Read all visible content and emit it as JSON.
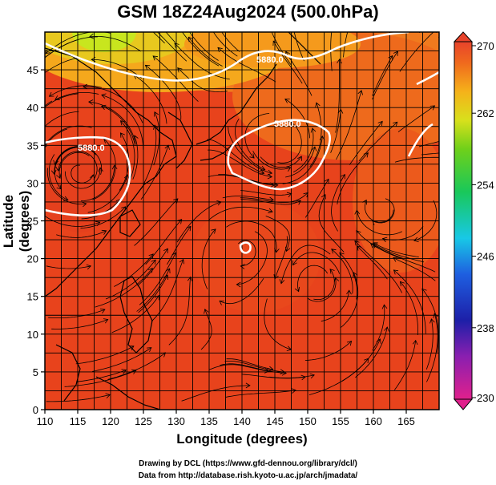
{
  "title": "GSM 18Z24Aug2024 (500.0hPa)",
  "xlabel": "Longitude (degrees)",
  "ylabel": "Latitude  (degrees)",
  "credits": {
    "line1": "Drawing by DCL (https://www.gfd-dennou.org/library/dcl/)",
    "line2": "Data from http://database.rish.kyoto-u.ac.jp/arch/jmadata/"
  },
  "x_ticks": [
    "110",
    "115",
    "120",
    "125",
    "130",
    "135",
    "140",
    "145",
    "150",
    "155",
    "160",
    "165"
  ],
  "y_ticks": [
    "0",
    "5",
    "10",
    "15",
    "20",
    "25",
    "30",
    "35",
    "40",
    "45"
  ],
  "colorbar_ticks": [
    "230",
    "238",
    "246",
    "254",
    "262",
    "270"
  ],
  "contour_labels": [
    "5880.0",
    "5880.0",
    "5880.0"
  ],
  "map": {
    "lon_range": [
      110,
      170
    ],
    "lat_range": [
      0,
      50
    ],
    "field": "temperature (shaded) with streamlines and geopotential height contours",
    "colorbar_range": [
      230,
      270
    ],
    "colors": {
      "warm": "#e8431c",
      "orange": "#f07a1e",
      "yellow_green": "#c8e61e",
      "contour": "#ffffff"
    }
  }
}
